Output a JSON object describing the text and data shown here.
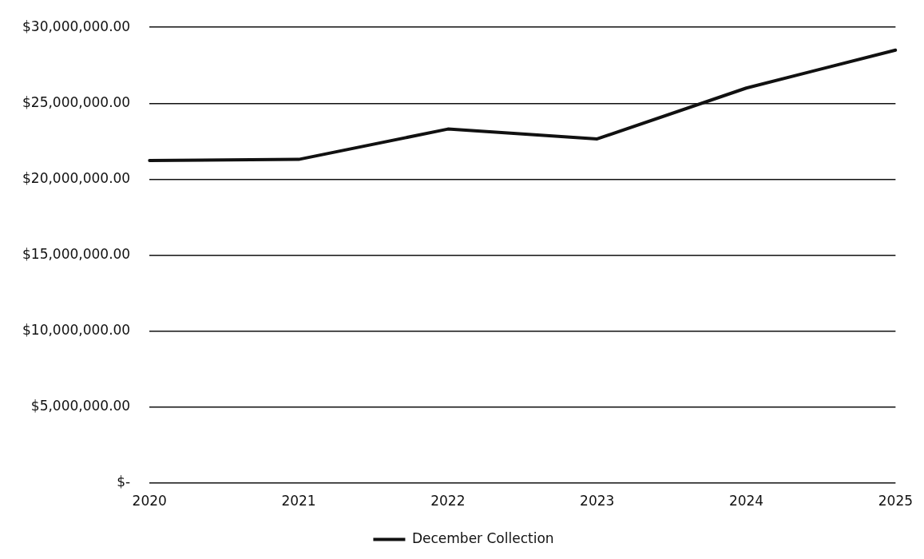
{
  "chart_data": {
    "type": "line",
    "categories": [
      "2020",
      "2021",
      "2022",
      "2023",
      "2024",
      "2025"
    ],
    "series": [
      {
        "name": "December Collection",
        "color": "#111111",
        "values": [
          21230000,
          21300000,
          23300000,
          22650000,
          26000000,
          28500000
        ]
      }
    ],
    "ylim": [
      0,
      30000000
    ],
    "yticks": [
      {
        "value": 0,
        "label": "$-"
      },
      {
        "value": 5000000,
        "label": "$5,000,000.00"
      },
      {
        "value": 10000000,
        "label": "$10,000,000.00"
      },
      {
        "value": 15000000,
        "label": "$15,000,000.00"
      },
      {
        "value": 20000000,
        "label": "$20,000,000.00"
      },
      {
        "value": 25000000,
        "label": "$25,000,000.00"
      },
      {
        "value": 30000000,
        "label": "$30,000,000.00"
      }
    ],
    "grid": "y",
    "legend": "bottom",
    "marker": "none",
    "line_style": "solid"
  }
}
